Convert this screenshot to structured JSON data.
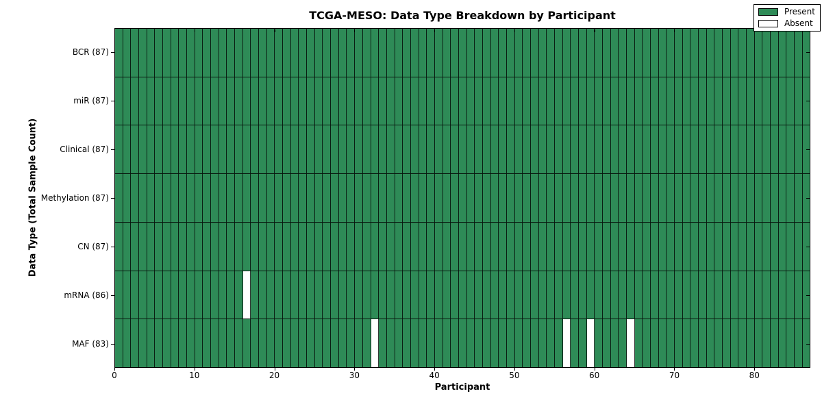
{
  "chart_data": {
    "type": "heatmap",
    "title": "TCGA-MESO: Data Type Breakdown by Participant",
    "xlabel": "Participant",
    "ylabel": "Data Type (Total Sample Count)",
    "n_participants": 87,
    "x_ticks": [
      0,
      10,
      20,
      30,
      40,
      50,
      60,
      70,
      80
    ],
    "xlim": [
      0,
      87
    ],
    "grid": "cell-edges",
    "legend_position": "upper right",
    "rows": [
      {
        "label": "BCR (87)",
        "data_type": "BCR",
        "present_count": 87,
        "absent_participants": []
      },
      {
        "label": "miR (87)",
        "data_type": "miR",
        "present_count": 87,
        "absent_participants": []
      },
      {
        "label": "Clinical (87)",
        "data_type": "Clinical",
        "present_count": 87,
        "absent_participants": []
      },
      {
        "label": "Methylation (87)",
        "data_type": "Methylation",
        "present_count": 87,
        "absent_participants": []
      },
      {
        "label": "CN (87)",
        "data_type": "CN",
        "present_count": 87,
        "absent_participants": []
      },
      {
        "label": "mRNA (86)",
        "data_type": "mRNA",
        "present_count": 86,
        "absent_participants": [
          16
        ]
      },
      {
        "label": "MAF (83)",
        "data_type": "MAF",
        "present_count": 83,
        "absent_participants": [
          32,
          56,
          59,
          64
        ]
      }
    ],
    "legend": [
      {
        "label": "Present",
        "color": "#2e8b57"
      },
      {
        "label": "Absent",
        "color": "#ffffff"
      }
    ],
    "colors": {
      "present": "#2e8b57",
      "absent": "#ffffff",
      "edge": "#000000",
      "background": "#ffffff"
    }
  }
}
